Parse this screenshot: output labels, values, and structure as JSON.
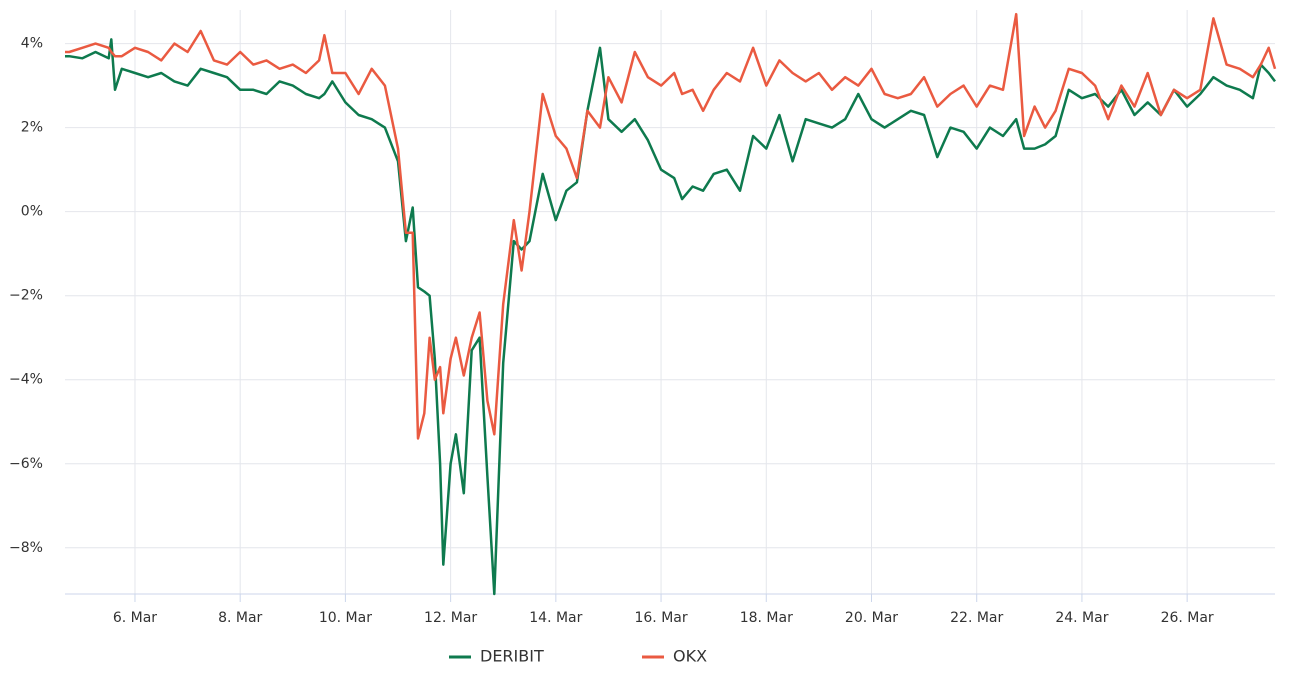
{
  "chart_data": {
    "type": "line",
    "x": [
      4.67,
      4.75,
      5.0,
      5.25,
      5.5,
      5.55,
      5.62,
      5.75,
      6.0,
      6.25,
      6.5,
      6.75,
      7.0,
      7.25,
      7.5,
      7.75,
      8.0,
      8.25,
      8.5,
      8.75,
      9.0,
      9.25,
      9.5,
      9.6,
      9.75,
      10.0,
      10.25,
      10.5,
      10.75,
      11.0,
      11.15,
      11.28,
      11.38,
      11.5,
      11.6,
      11.7,
      11.8,
      11.86,
      12.0,
      12.1,
      12.25,
      12.4,
      12.55,
      12.7,
      12.83,
      13.0,
      13.2,
      13.35,
      13.5,
      13.75,
      14.0,
      14.2,
      14.4,
      14.6,
      14.84,
      15.0,
      15.25,
      15.5,
      15.75,
      16.0,
      16.25,
      16.4,
      16.6,
      16.8,
      17.0,
      17.25,
      17.5,
      17.75,
      18.0,
      18.25,
      18.5,
      18.75,
      19.0,
      19.25,
      19.5,
      19.75,
      20.0,
      20.25,
      20.5,
      20.75,
      21.0,
      21.25,
      21.5,
      21.75,
      22.0,
      22.25,
      22.5,
      22.75,
      22.9,
      23.1,
      23.3,
      23.5,
      23.75,
      24.0,
      24.25,
      24.5,
      24.75,
      25.0,
      25.25,
      25.5,
      25.75,
      26.0,
      26.25,
      26.5,
      26.75,
      27.0,
      27.25,
      27.4,
      27.55,
      27.67
    ],
    "series": [
      {
        "name": "DERIBIT",
        "color": "#0e7a4e",
        "values": [
          3.7,
          3.7,
          3.65,
          3.8,
          3.65,
          4.1,
          2.9,
          3.4,
          3.3,
          3.2,
          3.3,
          3.1,
          3.0,
          3.4,
          3.3,
          3.2,
          2.9,
          2.9,
          2.8,
          3.1,
          3.0,
          2.8,
          2.7,
          2.8,
          3.1,
          2.6,
          2.3,
          2.2,
          2.0,
          1.2,
          -0.7,
          0.1,
          -1.8,
          -1.9,
          -2.0,
          -3.5,
          -6.0,
          -8.4,
          -6.0,
          -5.3,
          -6.7,
          -3.3,
          -3.0,
          -6.3,
          -9.1,
          -3.6,
          -0.7,
          -0.9,
          -0.7,
          0.9,
          -0.2,
          0.5,
          0.7,
          2.4,
          3.9,
          2.2,
          1.9,
          2.2,
          1.7,
          1.0,
          0.8,
          0.3,
          0.6,
          0.5,
          0.9,
          1.0,
          0.5,
          1.8,
          1.5,
          2.3,
          1.2,
          2.2,
          2.1,
          2.0,
          2.2,
          2.8,
          2.2,
          2.0,
          2.2,
          2.4,
          2.3,
          1.3,
          2.0,
          1.9,
          1.5,
          2.0,
          1.8,
          2.2,
          1.5,
          1.5,
          1.6,
          1.8,
          2.9,
          2.7,
          2.8,
          2.5,
          2.9,
          2.3,
          2.6,
          2.3,
          2.9,
          2.5,
          2.8,
          3.2,
          3.0,
          2.9,
          2.7,
          3.5,
          3.3,
          3.1
        ]
      },
      {
        "name": "OKX",
        "color": "#ea5a41",
        "values": [
          3.8,
          3.8,
          3.9,
          4.0,
          3.9,
          3.8,
          3.7,
          3.7,
          3.9,
          3.8,
          3.6,
          4.0,
          3.8,
          4.3,
          3.6,
          3.5,
          3.8,
          3.5,
          3.6,
          3.4,
          3.5,
          3.3,
          3.6,
          4.2,
          3.3,
          3.3,
          2.8,
          3.4,
          3.0,
          1.5,
          -0.5,
          -0.5,
          -5.4,
          -4.8,
          -3.0,
          -4.0,
          -3.7,
          -4.8,
          -3.5,
          -3.0,
          -3.9,
          -3.0,
          -2.4,
          -4.5,
          -5.3,
          -2.2,
          -0.2,
          -1.4,
          0.0,
          2.8,
          1.8,
          1.5,
          0.8,
          2.4,
          2.0,
          3.2,
          2.6,
          3.8,
          3.2,
          3.0,
          3.3,
          2.8,
          2.9,
          2.4,
          2.9,
          3.3,
          3.1,
          3.9,
          3.0,
          3.6,
          3.3,
          3.1,
          3.3,
          2.9,
          3.2,
          3.0,
          3.4,
          2.8,
          2.7,
          2.8,
          3.2,
          2.5,
          2.8,
          3.0,
          2.5,
          3.0,
          2.9,
          4.7,
          1.8,
          2.5,
          2.0,
          2.4,
          3.4,
          3.3,
          3.0,
          2.2,
          3.0,
          2.5,
          3.3,
          2.3,
          2.9,
          2.7,
          2.9,
          4.6,
          3.5,
          3.4,
          3.2,
          3.5,
          3.9,
          3.4
        ]
      }
    ],
    "xlim": [
      4.67,
      27.67
    ],
    "xticks": [
      {
        "value": 6,
        "label": "6. Mar"
      },
      {
        "value": 8,
        "label": "8. Mar"
      },
      {
        "value": 10,
        "label": "10. Mar"
      },
      {
        "value": 12,
        "label": "12. Mar"
      },
      {
        "value": 14,
        "label": "14. Mar"
      },
      {
        "value": 16,
        "label": "16. Mar"
      },
      {
        "value": 18,
        "label": "18. Mar"
      },
      {
        "value": 20,
        "label": "20. Mar"
      },
      {
        "value": 22,
        "label": "22. Mar"
      },
      {
        "value": 24,
        "label": "24. Mar"
      },
      {
        "value": 26,
        "label": "26. Mar"
      }
    ],
    "ylim": [
      -9.1,
      4.8
    ],
    "yticks": [
      {
        "value": -8,
        "label": "−8%"
      },
      {
        "value": -6,
        "label": "−6%"
      },
      {
        "value": -4,
        "label": "−4%"
      },
      {
        "value": -2,
        "label": "−2%"
      },
      {
        "value": 0,
        "label": "0%"
      },
      {
        "value": 2,
        "label": "2%"
      },
      {
        "value": 4,
        "label": "4%"
      }
    ],
    "grid": true
  }
}
